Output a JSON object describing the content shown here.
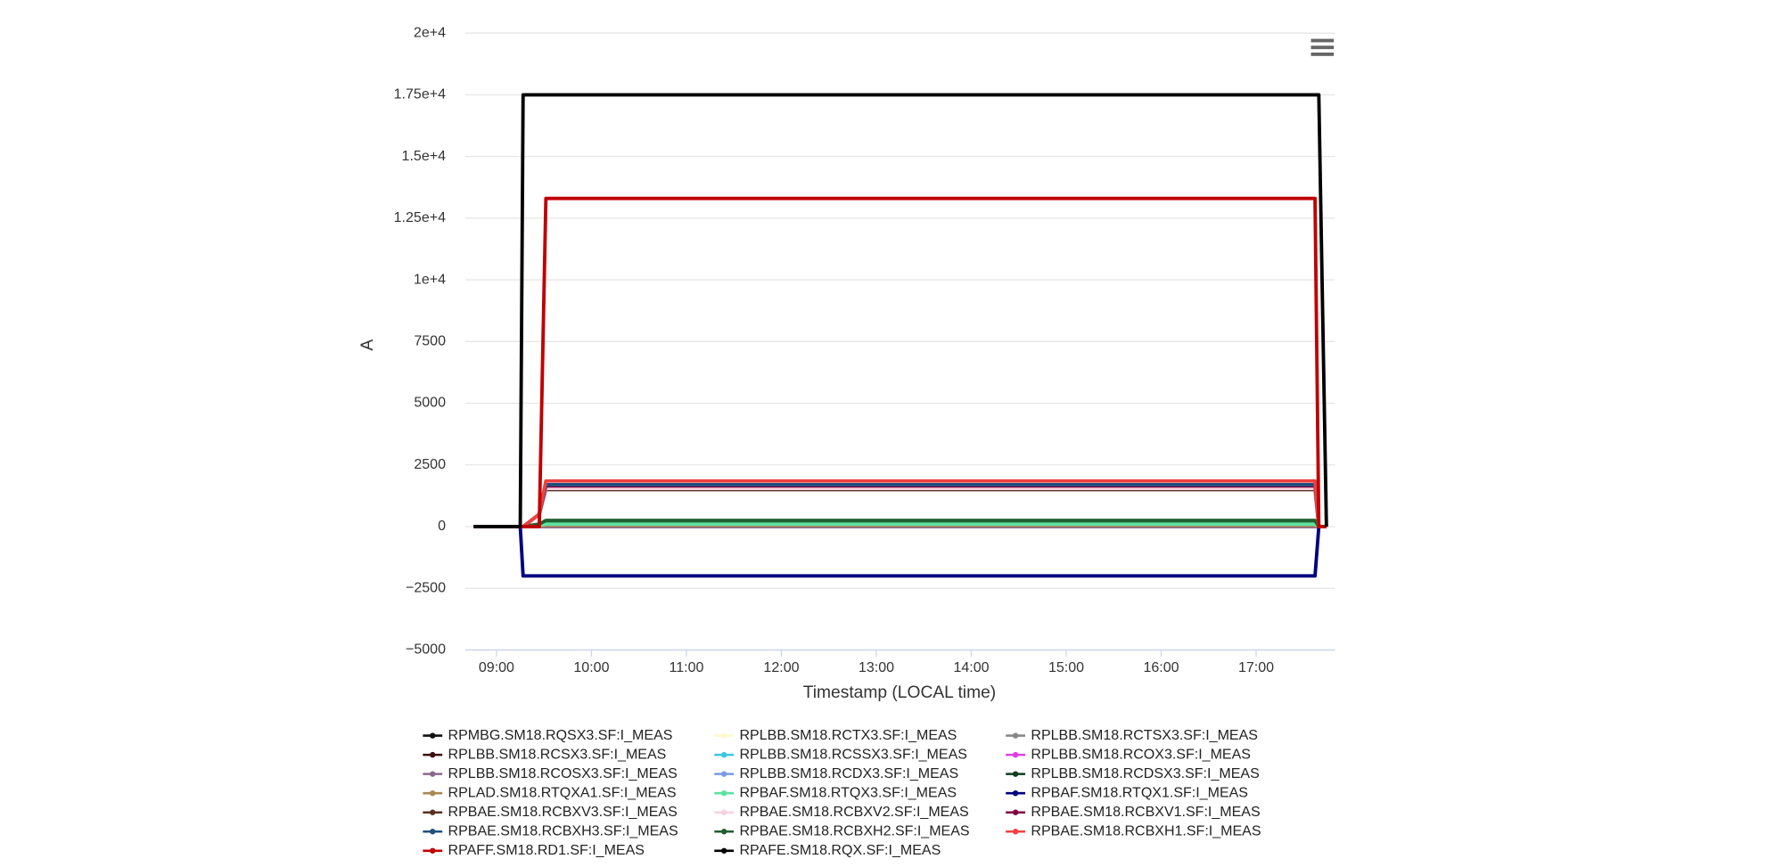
{
  "chart_data": {
    "type": "line",
    "y_label": "A",
    "x_label": "Timestamp (LOCAL time)",
    "xlim": [
      8.67,
      17.83
    ],
    "xticks": [
      {
        "value": 9,
        "label": "09:00"
      },
      {
        "value": 10,
        "label": "10:00"
      },
      {
        "value": 11,
        "label": "11:00"
      },
      {
        "value": 12,
        "label": "12:00"
      },
      {
        "value": 13,
        "label": "13:00"
      },
      {
        "value": 14,
        "label": "14:00"
      },
      {
        "value": 15,
        "label": "15:00"
      },
      {
        "value": 16,
        "label": "16:00"
      },
      {
        "value": 17,
        "label": "17:00"
      }
    ],
    "ylim": [
      -5000,
      20000
    ],
    "yticks": [
      {
        "value": -5000,
        "label": "−5000"
      },
      {
        "value": -2500,
        "label": "−2500"
      },
      0,
      2500,
      5000,
      7500,
      {
        "value": 10000,
        "label": "1e+4"
      },
      {
        "value": 12500,
        "label": "1.25e+4"
      },
      {
        "value": 15000,
        "label": "1.5e+4"
      },
      {
        "value": 17500,
        "label": "1.75e+4"
      },
      {
        "value": 20000,
        "label": "2e+4"
      }
    ],
    "grid": true,
    "x": [
      8.76,
      9.25,
      9.28,
      9.45,
      9.52,
      17.62,
      17.66,
      17.74
    ],
    "series": [
      {
        "name": "RPMBG.SM18.RQSX3.SF:I_MEAS",
        "color": "#111111",
        "values": [
          0,
          0,
          0,
          20,
          50,
          50,
          0,
          0
        ]
      },
      {
        "name": "RPLBB.SM18.RCTX3.SF:I_MEAS",
        "color": "#fffacd",
        "values": [
          0,
          0,
          0,
          0,
          0,
          0,
          0,
          0
        ]
      },
      {
        "name": "RPLBB.SM18.RCTSX3.SF:I_MEAS",
        "color": "#888888",
        "values": [
          0,
          0,
          0,
          50,
          100,
          100,
          0,
          0
        ]
      },
      {
        "name": "RPLBB.SM18.RCSX3.SF:I_MEAS",
        "color": "#3d0d0d",
        "values": [
          0,
          0,
          0,
          0,
          0,
          0,
          0,
          0
        ]
      },
      {
        "name": "RPLBB.SM18.RCSSX3.SF:I_MEAS",
        "color": "#3cc8e0",
        "values": [
          0,
          0,
          0,
          0,
          0,
          0,
          0,
          0
        ]
      },
      {
        "name": "RPLBB.SM18.RCOX3.SF:I_MEAS",
        "color": "#e040e0",
        "values": [
          0,
          0,
          0,
          0,
          0,
          0,
          0,
          0
        ]
      },
      {
        "name": "RPLBB.SM18.RCOSX3.SF:I_MEAS",
        "color": "#8a6a8a",
        "values": [
          0,
          0,
          0,
          0,
          0,
          0,
          0,
          0
        ]
      },
      {
        "name": "RPLBB.SM18.RCDX3.SF:I_MEAS",
        "color": "#7a9be0",
        "values": [
          0,
          0,
          0,
          500,
          1600,
          1600,
          0,
          0
        ]
      },
      {
        "name": "RPLBB.SM18.RCDSX3.SF:I_MEAS",
        "color": "#0d3d20",
        "values": [
          0,
          0,
          0,
          100,
          200,
          200,
          0,
          0
        ]
      },
      {
        "name": "RPLAD.SM18.RTQXA1.SF:I_MEAS",
        "color": "#a88a50",
        "values": [
          0,
          0,
          0,
          20,
          50,
          50,
          0,
          0
        ]
      },
      {
        "name": "RPBAF.SM18.RTQX3.SF:I_MEAS",
        "color": "#60e0a0",
        "values": [
          0,
          0,
          0,
          50,
          100,
          100,
          0,
          0
        ]
      },
      {
        "name": "RPBAF.SM18.RTQX1.SF:I_MEAS",
        "color": "#000080",
        "values": [
          0,
          0,
          -2000,
          -2000,
          -2000,
          -2000,
          0,
          0
        ]
      },
      {
        "name": "RPBAE.SM18.RCBXV3.SF:I_MEAS",
        "color": "#5a3020",
        "values": [
          0,
          0,
          0,
          500,
          1500,
          1500,
          0,
          0
        ]
      },
      {
        "name": "RPBAE.SM18.RCBXV2.SF:I_MEAS",
        "color": "#f8d0e0",
        "values": [
          0,
          0,
          0,
          500,
          1550,
          1550,
          0,
          0
        ]
      },
      {
        "name": "RPBAE.SM18.RCBXV1.SF:I_MEAS",
        "color": "#800040",
        "values": [
          0,
          0,
          0,
          500,
          1650,
          1650,
          0,
          0
        ]
      },
      {
        "name": "RPBAE.SM18.RCBXH3.SF:I_MEAS",
        "color": "#205080",
        "values": [
          0,
          0,
          0,
          500,
          1700,
          1700,
          0,
          0
        ]
      },
      {
        "name": "RPBAE.SM18.RCBXH2.SF:I_MEAS",
        "color": "#206030",
        "values": [
          0,
          0,
          0,
          100,
          250,
          250,
          0,
          0
        ]
      },
      {
        "name": "RPBAE.SM18.RCBXH1.SF:I_MEAS",
        "color": "#f04040",
        "values": [
          0,
          0,
          0,
          500,
          1850,
          1850,
          0,
          0
        ]
      },
      {
        "name": "RPAFF.SM18.RD1.SF:I_MEAS",
        "color": "#c00000",
        "values": [
          0,
          0,
          0,
          0,
          13300,
          13300,
          0,
          0
        ]
      },
      {
        "name": "RPAFE.SM18.RQX.SF:I_MEAS",
        "color": "#000000",
        "values": [
          0,
          0,
          17500,
          17500,
          17500,
          17500,
          17500,
          0
        ]
      }
    ]
  }
}
